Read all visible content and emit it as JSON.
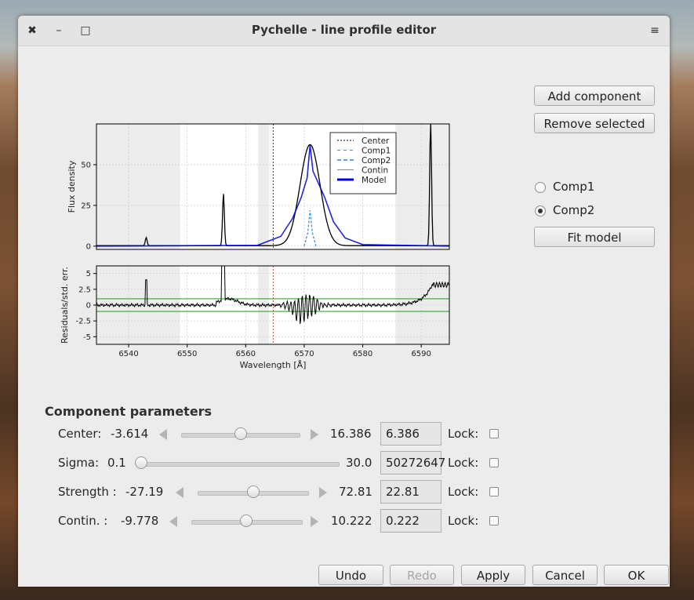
{
  "window": {
    "title": "Pychelle - line profile editor"
  },
  "titlebar": {
    "close_icon": "✖",
    "minimize_icon": "–",
    "maximize_icon": "□",
    "menu_icon": "≡"
  },
  "side": {
    "add_component": "Add component",
    "remove_selected": "Remove selected",
    "components": [
      {
        "label": "Comp1",
        "selected": false
      },
      {
        "label": "Comp2",
        "selected": true
      }
    ],
    "fit_model": "Fit model"
  },
  "chart_data": [
    {
      "type": "line",
      "ylabel": "Flux density",
      "yticks": [
        0,
        25,
        50
      ],
      "ylim": [
        -2,
        75
      ],
      "xlim": [
        6534.5,
        6594.8
      ],
      "legend": [
        "Center",
        "Comp1",
        "Comp2",
        "Contin",
        "Model"
      ],
      "legend_position": "top-right",
      "center_line_x": 6564.7,
      "grey_bands": [
        [
          6534.5,
          6548.8
        ],
        [
          6562.1,
          6564.0
        ],
        [
          6585.6,
          6594.8
        ]
      ],
      "colors": {
        "data": "#000000",
        "model": "#0000cc",
        "comp": "#4a8fd6"
      },
      "peaks": [
        {
          "x": 6543.0,
          "height": 5
        },
        {
          "x": 6556.2,
          "height": 32
        },
        {
          "x": 6571.0,
          "height": 62
        },
        {
          "x": 6591.6,
          "height": 76
        }
      ],
      "model": [
        [
          6534.5,
          0
        ],
        [
          6562,
          0.5
        ],
        [
          6566,
          6
        ],
        [
          6568,
          17
        ],
        [
          6569.5,
          30
        ],
        [
          6570.5,
          42
        ],
        [
          6571,
          62
        ],
        [
          6571.5,
          46
        ],
        [
          6572.5,
          38
        ],
        [
          6573.5,
          30
        ],
        [
          6575,
          15
        ],
        [
          6577,
          5
        ],
        [
          6580,
          1
        ],
        [
          6594.8,
          0
        ]
      ],
      "comp2": [
        [
          6570,
          0
        ],
        [
          6570.6,
          8
        ],
        [
          6571,
          22
        ],
        [
          6571.4,
          8
        ],
        [
          6572,
          0
        ]
      ]
    },
    {
      "type": "line",
      "ylabel": "Residuals/std. err.",
      "yticks": [
        -5,
        -2.5,
        0,
        2.5,
        5
      ],
      "ylim": [
        -6.2,
        6.2
      ],
      "xlim": [
        6534.5,
        6594.8
      ],
      "xlabel": "Wavelength [Å]",
      "xticks": [
        6540,
        6550,
        6560,
        6570,
        6580,
        6590
      ],
      "hlines": [
        1,
        -1
      ],
      "colors": {
        "data": "#000000",
        "hline": "#3aa33a"
      }
    }
  ],
  "params": {
    "title": "Component parameters",
    "lock_label": "Lock:",
    "rows": [
      {
        "label": "Center:",
        "min": "-3.614",
        "max": "16.386",
        "value": "6.386",
        "level": 0.5
      },
      {
        "label": "Sigma:",
        "min": "0.1",
        "max": "30.0",
        "value": "50272647",
        "level": 0.0
      },
      {
        "label": "Strength :",
        "min": "-27.19",
        "max": "72.81",
        "value": "22.81",
        "level": 0.5
      },
      {
        "label": "Contin.  :",
        "min": "-9.778",
        "max": "10.222",
        "value": "0.222",
        "level": 0.5
      }
    ]
  },
  "footer": {
    "undo": "Undo",
    "redo": "Redo",
    "apply": "Apply",
    "cancel": "Cancel",
    "ok": "OK"
  }
}
